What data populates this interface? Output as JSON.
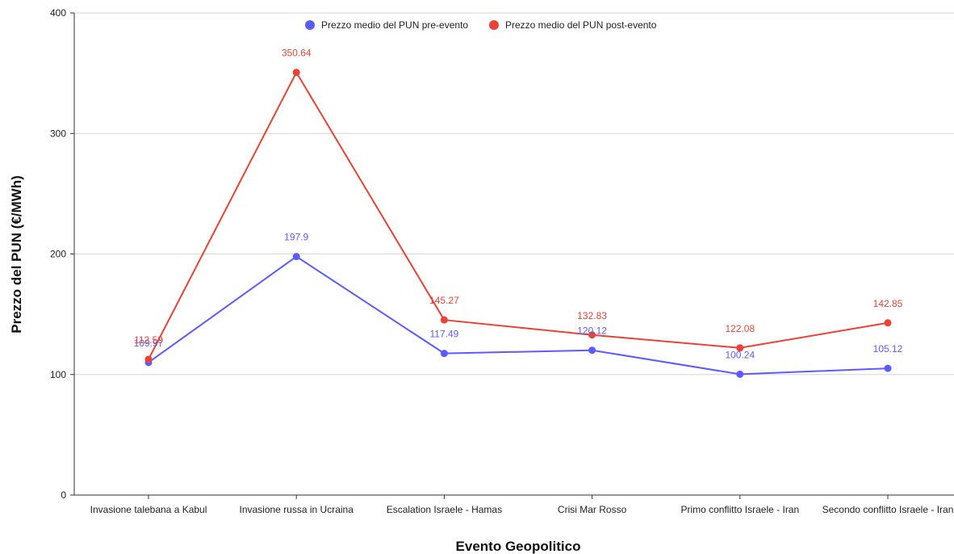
{
  "chart_data": {
    "type": "line",
    "title": "",
    "xlabel": "Evento Geopolitico",
    "ylabel": "Prezzo del PUN (€/MWh)",
    "ylim": [
      0,
      400
    ],
    "yticks": [
      0,
      100,
      200,
      300,
      400
    ],
    "grid": true,
    "legend_position": "top",
    "categories": [
      "Invasione talebana a Kabul",
      "Invasione russa in Ucraina",
      "Escalation Israele - Hamas",
      "Crisi Mar Rosso",
      "Primo conflitto Israele - Iran",
      "Secondo conflitto Israele - Iran"
    ],
    "series": [
      {
        "name": "Prezzo medio del PUN pre-evento",
        "color": "#5b5bff",
        "values": [
          109.97,
          197.9,
          117.49,
          120.12,
          100.24,
          105.12
        ],
        "labels": [
          "109.97",
          "197.9",
          "117.49",
          "120.12",
          "100.24",
          "105.12"
        ]
      },
      {
        "name": "Prezzo medio del PUN post-evento",
        "color": "#ea4335",
        "values": [
          112.59,
          350.64,
          145.27,
          132.83,
          122.08,
          142.85
        ],
        "labels": [
          "112.59",
          "350.64",
          "145.27",
          "132.83",
          "122.08",
          "142.85"
        ]
      }
    ]
  }
}
